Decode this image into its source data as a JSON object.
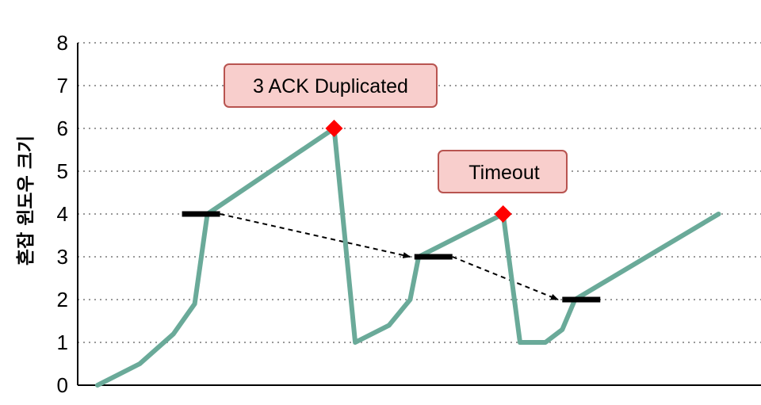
{
  "chart_data": {
    "type": "line",
    "ylabel": "혼잡 윈도우 크기",
    "xlabel": "",
    "title": "",
    "ylim": [
      0,
      8
    ],
    "yticks": [
      "0",
      "1",
      "2",
      "3",
      "4",
      "5",
      "6",
      "7",
      "8"
    ],
    "grid": "horizontal dotted",
    "series": [
      {
        "color": "#6aaa99",
        "points": [
          [
            0.0,
            0.0
          ],
          [
            1.0,
            0.5
          ],
          [
            1.8,
            1.2
          ],
          [
            2.3,
            1.9
          ],
          [
            2.6,
            4.0
          ],
          [
            5.6,
            6.0
          ],
          [
            6.1,
            1.0
          ],
          [
            6.9,
            1.4
          ],
          [
            7.4,
            2.0
          ],
          [
            7.6,
            3.0
          ],
          [
            9.6,
            4.0
          ],
          [
            10.0,
            1.0
          ],
          [
            10.6,
            1.0
          ],
          [
            11.0,
            1.3
          ],
          [
            11.3,
            2.0
          ],
          [
            14.7,
            4.0
          ]
        ]
      }
    ],
    "thresholds": [
      {
        "x_start": 2.0,
        "x_end": 2.9,
        "y": 4
      },
      {
        "x_start": 7.5,
        "x_end": 8.4,
        "y": 3
      },
      {
        "x_start": 11.0,
        "x_end": 11.9,
        "y": 2
      }
    ],
    "arrows": [
      {
        "from": [
          2.9,
          4.0
        ],
        "to": [
          7.4,
          3.0
        ]
      },
      {
        "from": [
          8.4,
          3.0
        ],
        "to": [
          10.9,
          2.0
        ]
      }
    ],
    "events": [
      {
        "x": 5.6,
        "y": 6,
        "marker": "diamond",
        "color": "#ff0000"
      },
      {
        "x": 9.6,
        "y": 4,
        "marker": "diamond",
        "color": "#ff0000"
      }
    ],
    "annotations": [
      {
        "text": "3 ACK Duplicated",
        "near_event": 0
      },
      {
        "text": "Timeout",
        "near_event": 1
      }
    ]
  },
  "colors": {
    "line": "#6aaa99",
    "marker": "#ff0000",
    "callout_fill": "#f8cecc",
    "callout_border": "#b85450",
    "threshold": "#000000",
    "grid": "#999999"
  }
}
